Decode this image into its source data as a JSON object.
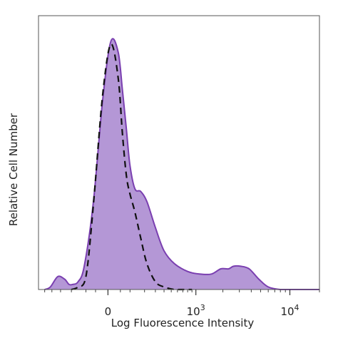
{
  "chart_data": {
    "type": "area",
    "title": "",
    "xlabel": "Log Fluorescence Intensity",
    "ylabel": "Relative Cell Number",
    "x_scale": "biexponential",
    "xlim": [
      -600,
      20000
    ],
    "ylim": [
      0,
      100
    ],
    "grid": false,
    "legend": "none",
    "x_ticks": [
      {
        "value": 0,
        "label": "0"
      },
      {
        "value": 1000,
        "label": "10",
        "exp": "3"
      },
      {
        "value": 10000,
        "label": "10",
        "exp": "4"
      }
    ],
    "series": [
      {
        "style": "filled",
        "color": "#7a3fb0",
        "fill": "#b497d6",
        "x": [
          -500,
          -420,
          -330,
          -260,
          -220,
          -190,
          -150,
          -110,
          -60,
          -20,
          10,
          40,
          60,
          80,
          100,
          130,
          170,
          220,
          300,
          400,
          550,
          800,
          1100,
          1500,
          1900,
          2300,
          2600,
          3100,
          3800,
          4800,
          6000,
          8000,
          12000,
          20000
        ],
        "y": [
          0,
          1,
          5,
          4,
          2,
          2,
          3,
          9,
          34,
          73,
          96,
          92,
          77,
          62,
          48,
          39,
          38,
          34,
          24,
          15,
          10,
          7,
          6,
          6,
          8,
          8,
          9,
          9,
          8,
          4,
          1,
          0,
          0,
          0
        ]
      },
      {
        "style": "dashed",
        "color": "#111111",
        "x": [
          -200,
          -150,
          -100,
          -60,
          -20,
          10,
          40,
          60,
          80,
          100,
          130,
          170,
          220,
          300,
          400,
          550,
          700,
          900
        ],
        "y": [
          0,
          1,
          5,
          33,
          75,
          95,
          82,
          60,
          44,
          37,
          30,
          20,
          10,
          3,
          1,
          0,
          0,
          0
        ]
      }
    ]
  }
}
